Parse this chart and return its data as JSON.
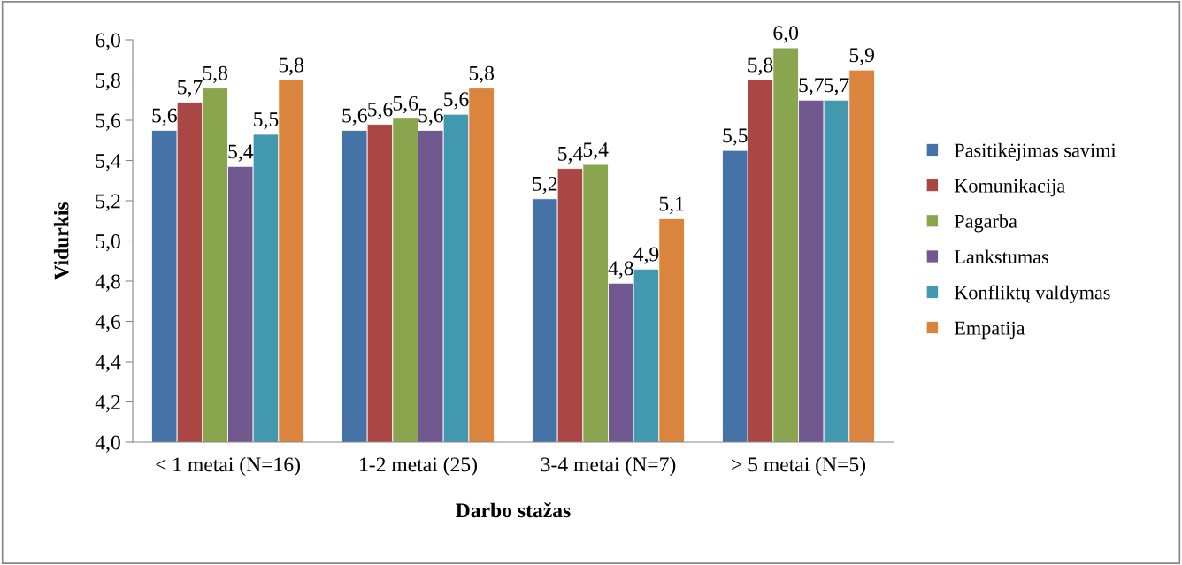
{
  "chart_data": {
    "type": "bar",
    "xlabel": "Darbo stažas",
    "ylabel": "Vidurkis",
    "categories": [
      "< 1 metai (N=16)",
      "1-2 metai (25)",
      "3-4 metai (N=7)",
      "> 5 metai (N=5)"
    ],
    "series": [
      {
        "name": "Pasitikėjimas savimi",
        "color": "#4572a7",
        "values": [
          5.55,
          5.55,
          5.21,
          5.45
        ],
        "value_labels": [
          "5,6",
          "5,6",
          "5,2",
          "5,5"
        ]
      },
      {
        "name": "Komunikacija",
        "color": "#aa4643",
        "values": [
          5.69,
          5.58,
          5.36,
          5.8
        ],
        "value_labels": [
          "5,7",
          "5,6",
          "5,4",
          "5,8"
        ]
      },
      {
        "name": "Pagarba",
        "color": "#89a54e",
        "values": [
          5.76,
          5.61,
          5.38,
          5.96
        ],
        "value_labels": [
          "5,8",
          "5,6",
          "5,4",
          "6,0"
        ]
      },
      {
        "name": "Lankstumas",
        "color": "#71588f",
        "values": [
          5.37,
          5.55,
          4.79,
          5.7
        ],
        "value_labels": [
          "5,4",
          "5,6",
          "4,8",
          "5,7"
        ]
      },
      {
        "name": "Konfliktų valdymas",
        "color": "#4198af",
        "values": [
          5.53,
          5.63,
          4.86,
          5.7
        ],
        "value_labels": [
          "5,5",
          "5,6",
          "4,9",
          "5,7"
        ]
      },
      {
        "name": "Empatija",
        "color": "#db843d",
        "values": [
          5.8,
          5.76,
          5.11,
          5.85
        ],
        "value_labels": [
          "5,8",
          "5,8",
          "5,1",
          "5,9"
        ]
      }
    ],
    "ylim": [
      4.0,
      6.0
    ],
    "yticks": [
      {
        "value": 4.0,
        "label": "4,0"
      },
      {
        "value": 4.2,
        "label": "4,2"
      },
      {
        "value": 4.4,
        "label": "4,4"
      },
      {
        "value": 4.6,
        "label": "4,6"
      },
      {
        "value": 4.8,
        "label": "4,8"
      },
      {
        "value": 5.0,
        "label": "5,0"
      },
      {
        "value": 5.2,
        "label": "5,2"
      },
      {
        "value": 5.4,
        "label": "5,4"
      },
      {
        "value": 5.6,
        "label": "5,6"
      },
      {
        "value": 5.8,
        "label": "5,8"
      },
      {
        "value": 6.0,
        "label": "6,0"
      }
    ],
    "grid": false,
    "legend": "right"
  }
}
